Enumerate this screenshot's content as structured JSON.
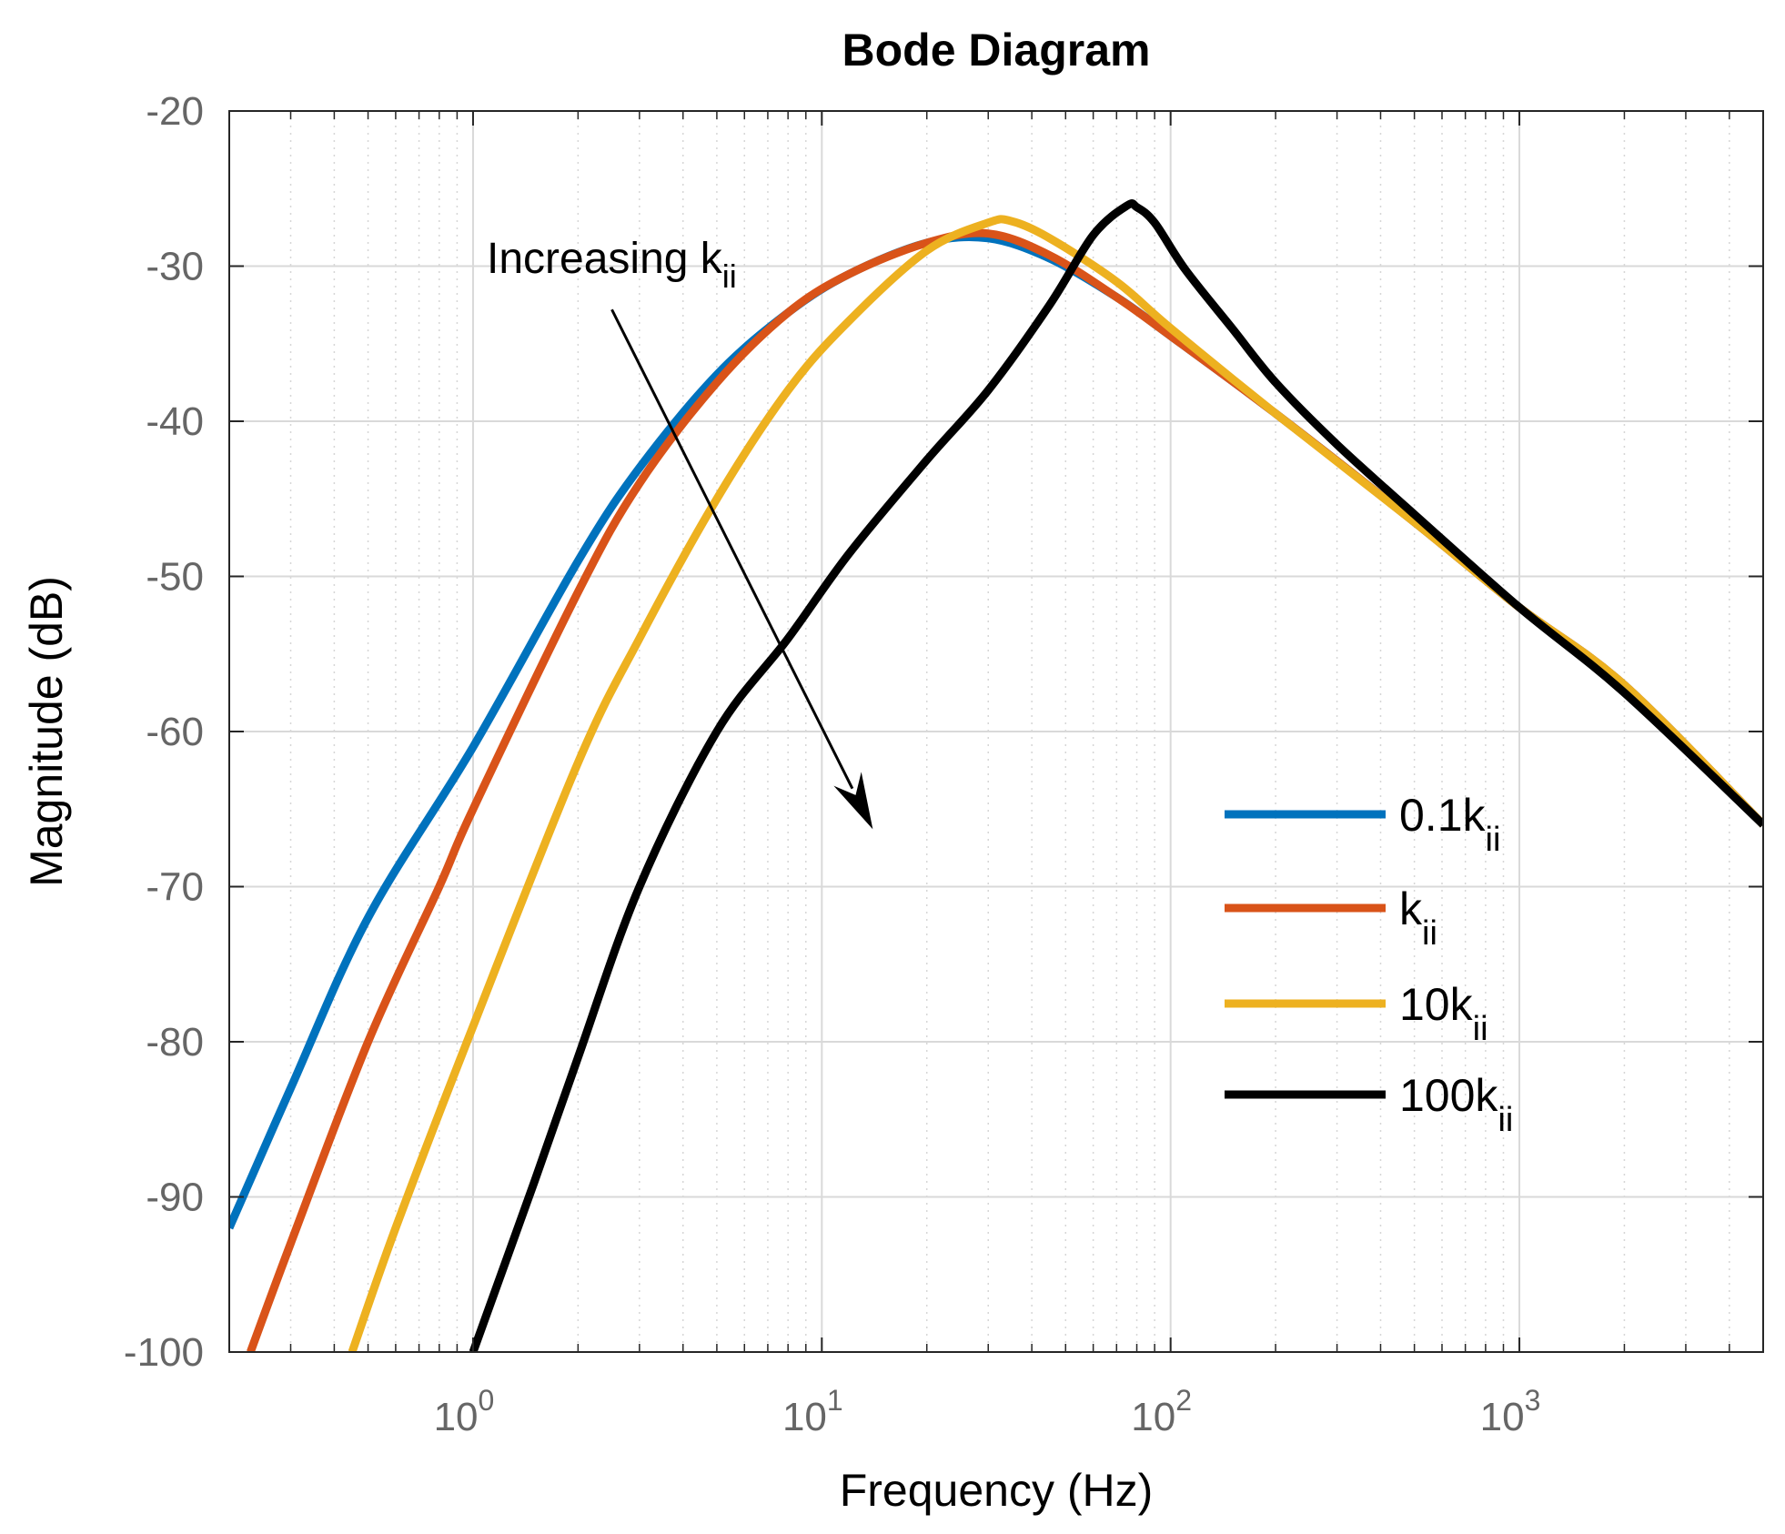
{
  "chart_data": {
    "type": "line",
    "title": "Bode Diagram",
    "xlabel": "Frequency  (Hz)",
    "ylabel": "Magnitude (dB)",
    "xscale": "log",
    "xlim": [
      0.2,
      5000
    ],
    "ylim": [
      -100,
      -20
    ],
    "grid": true,
    "legend_position": "right",
    "x_ticks": [
      {
        "value": 1,
        "base": "10",
        "exp": "0"
      },
      {
        "value": 10,
        "base": "10",
        "exp": "1"
      },
      {
        "value": 100,
        "base": "10",
        "exp": "2"
      },
      {
        "value": 1000,
        "base": "10",
        "exp": "3"
      }
    ],
    "y_ticks": [
      {
        "value": -20,
        "label": "-20"
      },
      {
        "value": -30,
        "label": "-30"
      },
      {
        "value": -40,
        "label": "-40"
      },
      {
        "value": -50,
        "label": "-50"
      },
      {
        "value": -60,
        "label": "-60"
      },
      {
        "value": -70,
        "label": "-70"
      },
      {
        "value": -80,
        "label": "-80"
      },
      {
        "value": -90,
        "label": "-90"
      },
      {
        "value": -100,
        "label": "-100"
      }
    ],
    "series": [
      {
        "name": "0.1kii",
        "label_main": "0.1k",
        "label_sub": "ii",
        "color": "#0072BD",
        "points": [
          [
            0.2,
            -92
          ],
          [
            0.3,
            -83
          ],
          [
            0.5,
            -72
          ],
          [
            1,
            -61
          ],
          [
            2,
            -49
          ],
          [
            3,
            -43
          ],
          [
            5,
            -37
          ],
          [
            8,
            -33
          ],
          [
            12,
            -30.5
          ],
          [
            20,
            -28.5
          ],
          [
            30,
            -28.2
          ],
          [
            45,
            -29.5
          ],
          [
            70,
            -32
          ],
          [
            100,
            -34.5
          ],
          [
            200,
            -39.5
          ],
          [
            500,
            -46.5
          ],
          [
            1000,
            -52
          ],
          [
            2000,
            -57
          ],
          [
            5000,
            -66
          ]
        ]
      },
      {
        "name": "kii",
        "label_main": "k",
        "label_sub": "ii",
        "color": "#D95319",
        "points": [
          [
            0.23,
            -100
          ],
          [
            0.3,
            -93
          ],
          [
            0.5,
            -80
          ],
          [
            0.8,
            -70
          ],
          [
            1,
            -65
          ],
          [
            2,
            -51
          ],
          [
            3,
            -44
          ],
          [
            5,
            -37.5
          ],
          [
            8,
            -33
          ],
          [
            12,
            -30.5
          ],
          [
            20,
            -28.5
          ],
          [
            30,
            -27.9
          ],
          [
            45,
            -29.3
          ],
          [
            70,
            -32
          ],
          [
            100,
            -34.5
          ],
          [
            200,
            -39.5
          ],
          [
            500,
            -46.5
          ],
          [
            1000,
            -52
          ],
          [
            2000,
            -57
          ],
          [
            5000,
            -66
          ]
        ]
      },
      {
        "name": "10kii",
        "label_main": "10k",
        "label_sub": "ii",
        "color": "#EDB120",
        "points": [
          [
            0.45,
            -100
          ],
          [
            0.6,
            -92
          ],
          [
            1,
            -79
          ],
          [
            2,
            -62
          ],
          [
            3,
            -54
          ],
          [
            5,
            -45
          ],
          [
            8,
            -38
          ],
          [
            12,
            -33.5
          ],
          [
            20,
            -29
          ],
          [
            30,
            -27.2
          ],
          [
            35,
            -27.1
          ],
          [
            45,
            -28.2
          ],
          [
            70,
            -31
          ],
          [
            100,
            -34
          ],
          [
            200,
            -39.5
          ],
          [
            500,
            -46.5
          ],
          [
            1000,
            -52
          ],
          [
            2000,
            -57
          ],
          [
            5000,
            -66
          ]
        ]
      },
      {
        "name": "100kii",
        "label_main": "100k",
        "label_sub": "ii",
        "color": "#000000",
        "points": [
          [
            1,
            -100
          ],
          [
            1.5,
            -89
          ],
          [
            2,
            -81
          ],
          [
            3,
            -70
          ],
          [
            5,
            -60
          ],
          [
            8,
            -54
          ],
          [
            12,
            -48.5
          ],
          [
            20,
            -42.5
          ],
          [
            30,
            -38
          ],
          [
            45,
            -32.5
          ],
          [
            60,
            -28
          ],
          [
            75,
            -26.1
          ],
          [
            80,
            -26.2
          ],
          [
            90,
            -27.2
          ],
          [
            110,
            -30.2
          ],
          [
            150,
            -34
          ],
          [
            200,
            -37.5
          ],
          [
            300,
            -41.5
          ],
          [
            500,
            -46
          ],
          [
            1000,
            -52
          ],
          [
            2000,
            -57.5
          ],
          [
            5000,
            -66
          ]
        ]
      }
    ],
    "annotation": {
      "text_main": "Increasing k",
      "text_sub": "ii",
      "arrow_from": {
        "x": 2.5,
        "y": -32.8
      },
      "arrow_to": {
        "x": 14,
        "y": -66.3
      }
    }
  }
}
